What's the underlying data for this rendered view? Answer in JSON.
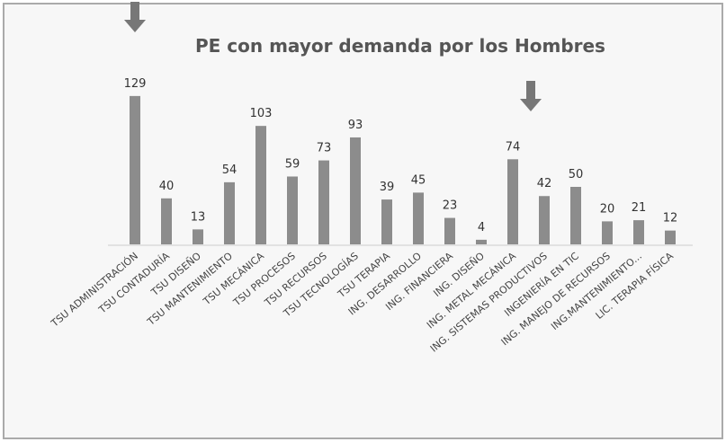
{
  "chart_data": {
    "type": "bar",
    "title": "PE con mayor demanda por los Hombres",
    "categories": [
      "TSU ADMINISTRACIÓN",
      "TSU CONTADURÍA",
      "TSU DISEÑO",
      "TSU MANTENIMIENTO",
      "TSU MECÁNICA",
      "TSU PROCESOS",
      "TSU RECURSOS",
      "TSU TECNOLOGÍAS",
      "TSU TERAPIA",
      "ING. DESARROLLO",
      "ING. FINANCIERA",
      "ING. DISEÑO",
      "ING. METAL MECÁNICA",
      "ING. SISTEMAS PRODUCTIVOS",
      "INGENIERÍA EN TIC",
      "ING. MANEJO DE RECURSOS",
      "ING.MANTENIMIENTO...",
      "LIC. TERAPIA FÍSICA"
    ],
    "values": [
      129,
      40,
      13,
      54,
      103,
      59,
      73,
      93,
      39,
      45,
      23,
      4,
      74,
      42,
      50,
      20,
      21,
      12
    ],
    "color": "#8c8c8c"
  }
}
